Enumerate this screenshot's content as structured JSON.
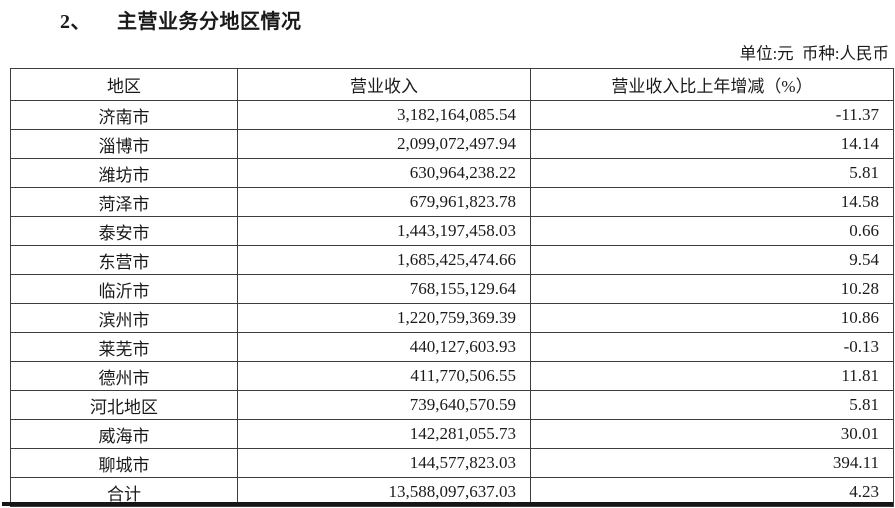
{
  "document": {
    "section_number": "2、",
    "section_title": "主营业务分地区情况",
    "unit_note": "单位:元  币种:人民币"
  },
  "table": {
    "headers": [
      "地区",
      "营业收入",
      "营业收入比上年增减（%）"
    ],
    "rows": [
      {
        "region": "济南市",
        "revenue": "3,182,164,085.54",
        "change": "-11.37"
      },
      {
        "region": "淄博市",
        "revenue": "2,099,072,497.94",
        "change": "14.14"
      },
      {
        "region": "潍坊市",
        "revenue": "630,964,238.22",
        "change": "5.81"
      },
      {
        "region": "菏泽市",
        "revenue": "679,961,823.78",
        "change": "14.58"
      },
      {
        "region": "泰安市",
        "revenue": "1,443,197,458.03",
        "change": "0.66"
      },
      {
        "region": "东营市",
        "revenue": "1,685,425,474.66",
        "change": "9.54"
      },
      {
        "region": "临沂市",
        "revenue": "768,155,129.64",
        "change": "10.28"
      },
      {
        "region": "滨州市",
        "revenue": "1,220,759,369.39",
        "change": "10.86"
      },
      {
        "region": "莱芜市",
        "revenue": "440,127,603.93",
        "change": "-0.13"
      },
      {
        "region": "德州市",
        "revenue": "411,770,506.55",
        "change": "11.81"
      },
      {
        "region": "河北地区",
        "revenue": "739,640,570.59",
        "change": "5.81"
      },
      {
        "region": "威海市",
        "revenue": "142,281,055.73",
        "change": "30.01"
      },
      {
        "region": "聊城市",
        "revenue": "144,577,823.03",
        "change": "394.11"
      },
      {
        "region": "合计",
        "revenue": "13,588,097,637.03",
        "change": "4.23"
      }
    ]
  }
}
